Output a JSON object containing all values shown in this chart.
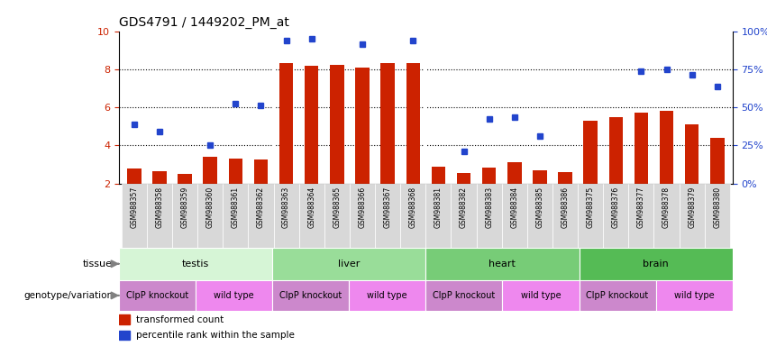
{
  "title": "GDS4791 / 1449202_PM_at",
  "samples": [
    "GSM988357",
    "GSM988358",
    "GSM988359",
    "GSM988360",
    "GSM988361",
    "GSM988362",
    "GSM988363",
    "GSM988364",
    "GSM988365",
    "GSM988366",
    "GSM988367",
    "GSM988368",
    "GSM988381",
    "GSM988382",
    "GSM988383",
    "GSM988384",
    "GSM988385",
    "GSM988386",
    "GSM988375",
    "GSM988376",
    "GSM988377",
    "GSM988378",
    "GSM988379",
    "GSM988380"
  ],
  "bar_values": [
    2.8,
    2.65,
    2.5,
    3.4,
    3.3,
    3.25,
    8.3,
    8.2,
    8.25,
    8.1,
    8.3,
    8.3,
    2.9,
    2.55,
    2.85,
    3.1,
    2.7,
    2.6,
    5.3,
    5.5,
    5.7,
    5.8,
    5.1,
    4.4
  ],
  "dot_values_left_scale": [
    5.1,
    4.7,
    null,
    4.0,
    6.2,
    6.1,
    9.5,
    9.6,
    null,
    9.3,
    null,
    9.5,
    null,
    3.7,
    5.4,
    5.5,
    4.5,
    null,
    null,
    null,
    7.9,
    8.0,
    7.7,
    7.1
  ],
  "tissues": [
    {
      "label": "testis",
      "start": 0,
      "end": 6,
      "color": "#d6f5d6"
    },
    {
      "label": "liver",
      "start": 6,
      "end": 12,
      "color": "#99dd99"
    },
    {
      "label": "heart",
      "start": 12,
      "end": 18,
      "color": "#77cc77"
    },
    {
      "label": "brain",
      "start": 18,
      "end": 24,
      "color": "#55bb55"
    }
  ],
  "genotypes": [
    {
      "label": "ClpP knockout",
      "start": 0,
      "end": 3,
      "color": "#cc88cc"
    },
    {
      "label": "wild type",
      "start": 3,
      "end": 6,
      "color": "#ee88ee"
    },
    {
      "label": "ClpP knockout",
      "start": 6,
      "end": 9,
      "color": "#cc88cc"
    },
    {
      "label": "wild type",
      "start": 9,
      "end": 12,
      "color": "#ee88ee"
    },
    {
      "label": "ClpP knockout",
      "start": 12,
      "end": 15,
      "color": "#cc88cc"
    },
    {
      "label": "wild type",
      "start": 15,
      "end": 18,
      "color": "#ee88ee"
    },
    {
      "label": "ClpP knockout",
      "start": 18,
      "end": 21,
      "color": "#cc88cc"
    },
    {
      "label": "wild type",
      "start": 21,
      "end": 24,
      "color": "#ee88ee"
    }
  ],
  "ylim_left": [
    2,
    10
  ],
  "ylim_right": [
    0,
    100
  ],
  "yticks_left": [
    2,
    4,
    6,
    8,
    10
  ],
  "yticks_right": [
    0,
    25,
    50,
    75,
    100
  ],
  "bar_color": "#cc2200",
  "dot_color": "#2244cc",
  "xtick_bg": "#d8d8d8"
}
